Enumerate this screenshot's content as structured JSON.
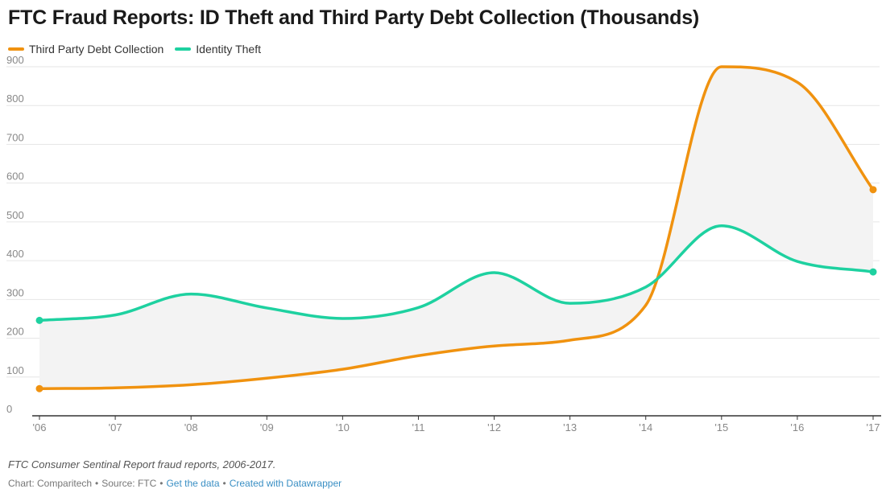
{
  "chart_data": {
    "type": "line",
    "title": "FTC Fraud Reports: ID Theft and Third Party Debt Collection (Thousands)",
    "categories": [
      "'06",
      "'07",
      "'08",
      "'09",
      "'10",
      "'11",
      "'12",
      "'13",
      "'14",
      "'15",
      "'16",
      "'17"
    ],
    "series": [
      {
        "name": "Third Party Debt Collection",
        "color": "#f0920f",
        "values": [
          70,
          72,
          80,
          97,
          120,
          155,
          180,
          195,
          285,
          900,
          860,
          583
        ]
      },
      {
        "name": "Identity Theft",
        "color": "#1ed1a0",
        "values": [
          246,
          260,
          314,
          278,
          251,
          279,
          369,
          290,
          332,
          490,
          398,
          371
        ]
      }
    ],
    "ylim": [
      0,
      900
    ],
    "yticks": [
      0,
      100,
      200,
      300,
      400,
      500,
      600,
      700,
      800,
      900
    ],
    "grid": true,
    "legend_position": "top-left",
    "shaded_between_series": true,
    "shade_color": "#f3f3f3"
  },
  "notes": "FTC Consumer Sentinal Report fraud reports, 2006-2017.",
  "footer": {
    "credit": "Chart: Comparitech",
    "source": "Source: FTC",
    "get_data": "Get the data",
    "created_with": "Created with Datawrapper"
  }
}
